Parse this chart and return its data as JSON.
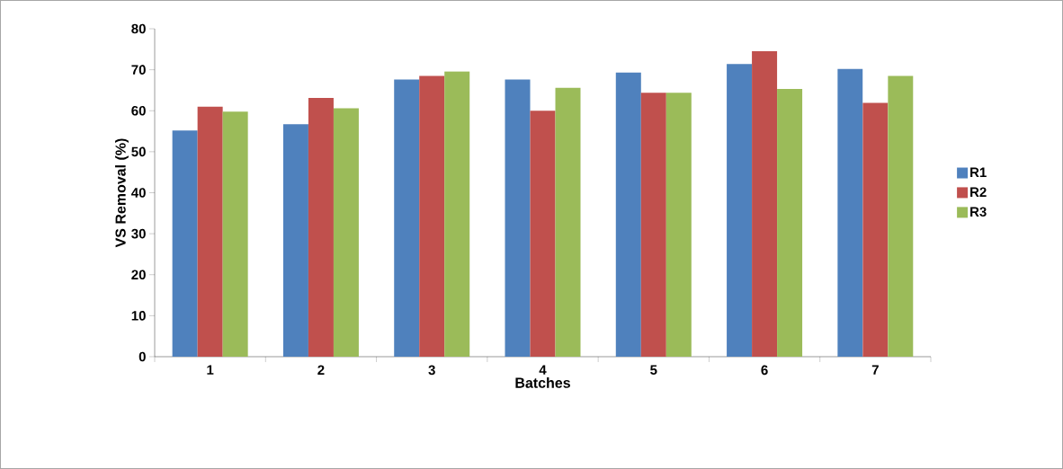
{
  "chart_data": {
    "type": "bar",
    "xlabel": "Batches",
    "ylabel": "VS Removal (%)",
    "categories": [
      "1",
      "2",
      "3",
      "4",
      "5",
      "6",
      "7"
    ],
    "series": [
      {
        "name": "R1",
        "color": "#4f81bd",
        "values": [
          55.2,
          56.7,
          67.6,
          67.6,
          69.3,
          71.4,
          70.2
        ]
      },
      {
        "name": "R2",
        "color": "#c0504d",
        "values": [
          61,
          63.1,
          68.5,
          60,
          64.4,
          74.5,
          61.9
        ]
      },
      {
        "name": "R3",
        "color": "#9bbb59",
        "values": [
          59.8,
          60.6,
          69.6,
          65.6,
          64.4,
          65.3,
          68.5
        ]
      }
    ],
    "ylim": [
      0,
      80
    ],
    "yticks": [
      0,
      10,
      20,
      30,
      40,
      50,
      60,
      70,
      80
    ],
    "legend": "right",
    "grid": false
  }
}
